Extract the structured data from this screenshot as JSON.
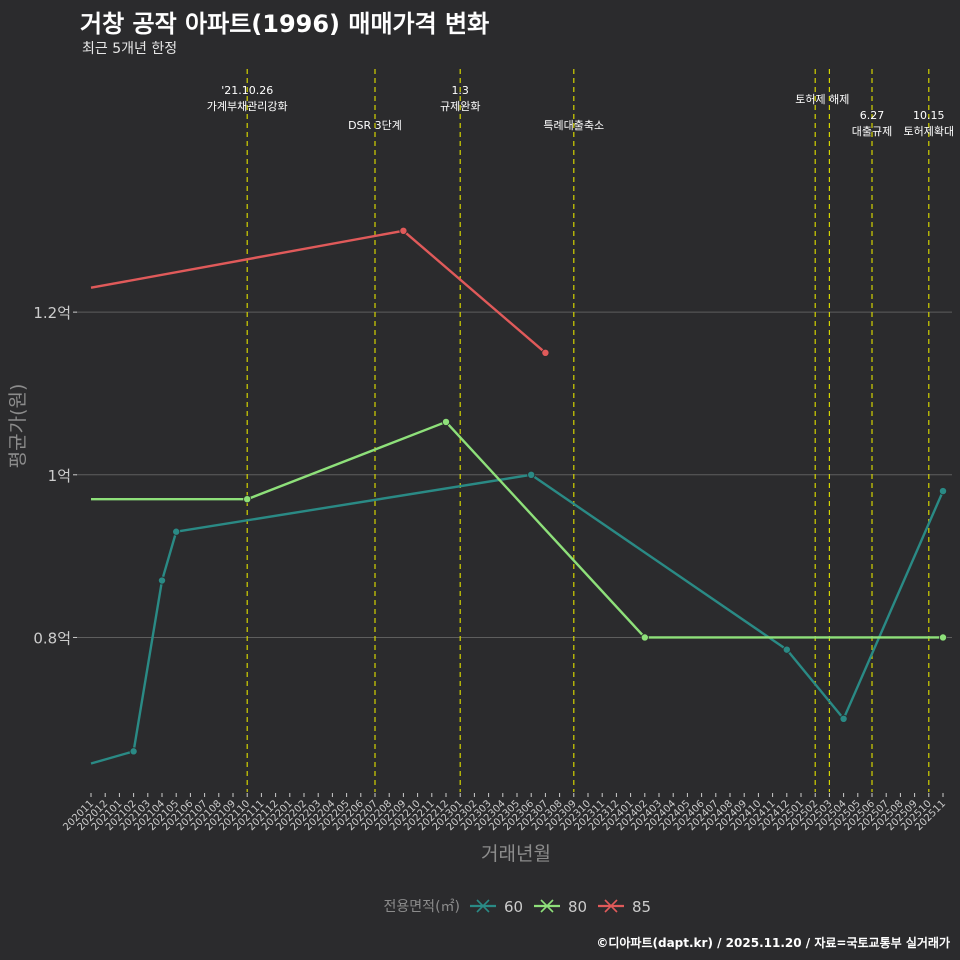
{
  "header": {
    "title": "거창 공작 아파트(1996) 매매가격 변화",
    "subtitle": "최근 5개년 한정"
  },
  "caption": "©디아파트(dapt.kr) / 2025.11.20 / 자료=국토교통부 실거래가",
  "colors": {
    "background": "#2b2b2d",
    "grid": "#5e5e5e",
    "event_line": "#d4d400",
    "axis_text": "#cccccc",
    "axis_title": "#8c8c8c"
  },
  "chart_data": {
    "type": "line",
    "xlabel": "거래년월",
    "ylabel": "평균가(원)",
    "ylim": [
      0.61,
      1.51
    ],
    "y_ticks": [
      {
        "value": 0.8,
        "label": "0.8억"
      },
      {
        "value": 1.0,
        "label": "1억"
      },
      {
        "value": 1.2,
        "label": "1.2억"
      }
    ],
    "categories": [
      "202011",
      "202012",
      "202101",
      "202102",
      "202103",
      "202104",
      "202105",
      "202106",
      "202107",
      "202108",
      "202109",
      "202110",
      "202111",
      "202112",
      "202201",
      "202202",
      "202203",
      "202204",
      "202205",
      "202206",
      "202207",
      "202208",
      "202209",
      "202210",
      "202211",
      "202212",
      "202301",
      "202302",
      "202303",
      "202304",
      "202305",
      "202306",
      "202307",
      "202308",
      "202309",
      "202310",
      "202311",
      "202312",
      "202401",
      "202402",
      "202403",
      "202404",
      "202405",
      "202406",
      "202407",
      "202408",
      "202409",
      "202410",
      "202411",
      "202412",
      "202501",
      "202502",
      "202503",
      "202504",
      "202505",
      "202506",
      "202507",
      "202508",
      "202509",
      "202510",
      "202511"
    ],
    "legend_title": "전용면적(㎡)",
    "series": [
      {
        "name": "60",
        "color": "#2a8a85",
        "points": [
          [
            "202011",
            0.645
          ],
          [
            "202102",
            0.66
          ],
          [
            "202104",
            0.87
          ],
          [
            "202105",
            0.93
          ],
          [
            "202306",
            1.0
          ],
          [
            "202412",
            0.785
          ],
          [
            "202504",
            0.7
          ],
          [
            "202511",
            0.98
          ]
        ]
      },
      {
        "name": "80",
        "color": "#8ee07a",
        "points": [
          [
            "202011",
            0.97
          ],
          [
            "202110",
            0.97
          ],
          [
            "202212",
            1.065
          ],
          [
            "202402",
            0.8
          ],
          [
            "202511",
            0.8
          ]
        ]
      },
      {
        "name": "85",
        "color": "#e05a5a",
        "points": [
          [
            "202011",
            1.23
          ],
          [
            "202209",
            1.3
          ],
          [
            "202307",
            1.15
          ]
        ]
      }
    ],
    "events": [
      {
        "month": "202110",
        "lines": [
          "'21.10.26",
          "가계부채관리강화"
        ],
        "level": 1
      },
      {
        "month": "202207",
        "lines": [
          "DSR 3단계"
        ],
        "level": 3
      },
      {
        "month": "202301",
        "lines": [
          "1.3",
          "규제완화"
        ],
        "level": 1
      },
      {
        "month": "202309",
        "lines": [
          "특례대출축소"
        ],
        "level": 3
      },
      {
        "month": "202502",
        "lines": [],
        "level": 0
      },
      {
        "month": "202503",
        "lines": [
          "토허제 해제"
        ],
        "level": 2,
        "anchor": "202502"
      },
      {
        "month": "202506",
        "lines": [
          "6.27",
          "대출규제"
        ],
        "level": 4
      },
      {
        "month": "202510",
        "lines": [
          "10.15",
          "토허제확대"
        ],
        "level": 4
      }
    ]
  }
}
